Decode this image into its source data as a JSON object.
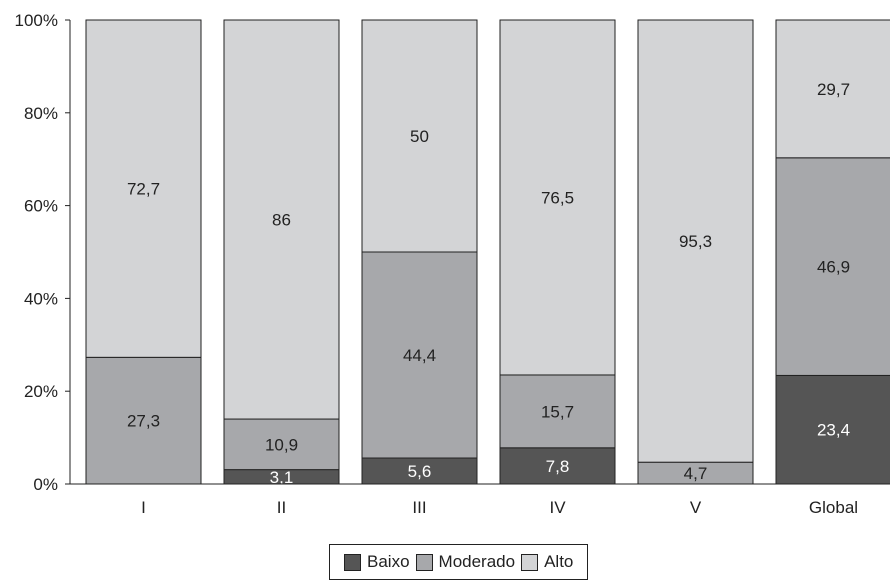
{
  "chart_data": {
    "type": "bar",
    "stacked": true,
    "categories": [
      "I",
      "II",
      "III",
      "IV",
      "V",
      "Global"
    ],
    "series": [
      {
        "name": "Baixo",
        "values": [
          0,
          3.1,
          5.6,
          7.8,
          0,
          23.4
        ],
        "labels": [
          "",
          "3,1",
          "5,6",
          "7,8",
          "",
          "23,4"
        ],
        "color": "#555555"
      },
      {
        "name": "Moderado",
        "values": [
          27.3,
          10.9,
          44.4,
          15.7,
          4.7,
          46.9
        ],
        "labels": [
          "27,3",
          "10,9",
          "44,4",
          "15,7",
          "4,7",
          "46,9"
        ],
        "color": "#a7a8ab"
      },
      {
        "name": "Alto",
        "values": [
          72.7,
          86,
          50,
          76.5,
          95.3,
          29.7
        ],
        "labels": [
          "72,7",
          "86",
          "50",
          "76,5",
          "95,3",
          "29,7"
        ],
        "color": "#d3d4d6"
      }
    ],
    "yticks": [
      "0%",
      "20%",
      "40%",
      "60%",
      "80%",
      "100%"
    ],
    "ylim": [
      0,
      100
    ],
    "legend_position": "bottom-center"
  }
}
